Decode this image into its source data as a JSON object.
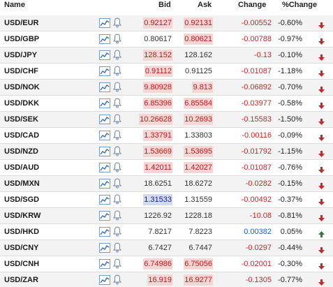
{
  "header": {
    "name": "Name",
    "bid": "Bid",
    "ask": "Ask",
    "change": "Change",
    "pchange": "%Change"
  },
  "colors": {
    "down_text": "#b71c1c",
    "down_bg": "#f6d5d5",
    "up_text": "#1a237e",
    "up_bg": "#d3dcef",
    "neg_change": "#c62828",
    "pos_change": "#1565c0",
    "arrow_down": "#c62828",
    "arrow_up": "#2e7d32",
    "icon_blue": "#4a7ebb"
  },
  "rows": [
    {
      "name": "USD/EUR",
      "bid": "0.92127",
      "bid_state": "down",
      "ask": "0.92131",
      "ask_state": "down",
      "change": "-0.00552",
      "change_dir": "neg",
      "pchange": "-0.60%",
      "arrow": "down"
    },
    {
      "name": "USD/GBP",
      "bid": "0.80617",
      "bid_state": "flat",
      "ask": "0.80621",
      "ask_state": "down",
      "change": "-0.00788",
      "change_dir": "neg",
      "pchange": "-0.97%",
      "arrow": "down"
    },
    {
      "name": "USD/JPY",
      "bid": "128.152",
      "bid_state": "down",
      "ask": "128.162",
      "ask_state": "flat",
      "change": "-0.13",
      "change_dir": "neg",
      "pchange": "-0.10%",
      "arrow": "down"
    },
    {
      "name": "USD/CHF",
      "bid": "0.91112",
      "bid_state": "down",
      "ask": "0.91125",
      "ask_state": "flat",
      "change": "-0.01087",
      "change_dir": "neg",
      "pchange": "-1.18%",
      "arrow": "down"
    },
    {
      "name": "USD/NOK",
      "bid": "9.80928",
      "bid_state": "down",
      "ask": "9.813",
      "ask_state": "down",
      "change": "-0.06892",
      "change_dir": "neg",
      "pchange": "-0.70%",
      "arrow": "down"
    },
    {
      "name": "USD/DKK",
      "bid": "6.85396",
      "bid_state": "down",
      "ask": "6.85584",
      "ask_state": "down",
      "change": "-0.03977",
      "change_dir": "neg",
      "pchange": "-0.58%",
      "arrow": "down"
    },
    {
      "name": "USD/SEK",
      "bid": "10.26628",
      "bid_state": "down",
      "ask": "10.2693",
      "ask_state": "down",
      "change": "-0.15583",
      "change_dir": "neg",
      "pchange": "-1.50%",
      "arrow": "down"
    },
    {
      "name": "USD/CAD",
      "bid": "1.33791",
      "bid_state": "down",
      "ask": "1.33803",
      "ask_state": "flat",
      "change": "-0.00116",
      "change_dir": "neg",
      "pchange": "-0.09%",
      "arrow": "down"
    },
    {
      "name": "USD/NZD",
      "bid": "1.53669",
      "bid_state": "down",
      "ask": "1.53695",
      "ask_state": "down",
      "change": "-0.01792",
      "change_dir": "neg",
      "pchange": "-1.15%",
      "arrow": "down"
    },
    {
      "name": "USD/AUD",
      "bid": "1.42011",
      "bid_state": "down",
      "ask": "1.42027",
      "ask_state": "down",
      "change": "-0.01087",
      "change_dir": "neg",
      "pchange": "-0.76%",
      "arrow": "down"
    },
    {
      "name": "USD/MXN",
      "bid": "18.6251",
      "bid_state": "flat",
      "ask": "18.6272",
      "ask_state": "flat",
      "change": "-0.0282",
      "change_dir": "neg",
      "pchange": "-0.15%",
      "arrow": "down"
    },
    {
      "name": "USD/SGD",
      "bid": "1.31533",
      "bid_state": "up",
      "ask": "1.31559",
      "ask_state": "flat",
      "change": "-0.00492",
      "change_dir": "neg",
      "pchange": "-0.37%",
      "arrow": "down"
    },
    {
      "name": "USD/KRW",
      "bid": "1226.92",
      "bid_state": "flat",
      "ask": "1228.18",
      "ask_state": "flat",
      "change": "-10.08",
      "change_dir": "neg",
      "pchange": "-0.81%",
      "arrow": "down"
    },
    {
      "name": "USD/HKD",
      "bid": "7.8217",
      "bid_state": "flat",
      "ask": "7.8223",
      "ask_state": "flat",
      "change": "0.00382",
      "change_dir": "pos",
      "pchange": "0.05%",
      "arrow": "up"
    },
    {
      "name": "USD/CNY",
      "bid": "6.7427",
      "bid_state": "flat",
      "ask": "6.7447",
      "ask_state": "flat",
      "change": "-0.0297",
      "change_dir": "neg",
      "pchange": "-0.44%",
      "arrow": "down"
    },
    {
      "name": "USD/CNH",
      "bid": "6.74986",
      "bid_state": "down",
      "ask": "6.75056",
      "ask_state": "down",
      "change": "-0.02001",
      "change_dir": "neg",
      "pchange": "-0.30%",
      "arrow": "down"
    },
    {
      "name": "USD/ZAR",
      "bid": "16.919",
      "bid_state": "down",
      "ask": "16.9277",
      "ask_state": "down",
      "change": "-0.1305",
      "change_dir": "neg",
      "pchange": "-0.77%",
      "arrow": "down"
    }
  ]
}
